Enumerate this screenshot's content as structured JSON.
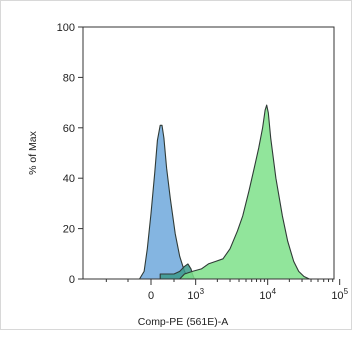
{
  "chart_data": {
    "type": "area",
    "xlabel": "Comp-PE (561E)-A",
    "ylabel": "% of Max",
    "xscale": "biexponential",
    "ylim": [
      0,
      100
    ],
    "y_ticks": [
      "0",
      "20",
      "40",
      "60",
      "80",
      "100"
    ],
    "x_ticks": [
      {
        "label": "0",
        "base": "0",
        "exp": ""
      },
      {
        "label": "10^3",
        "base": "10",
        "exp": "3"
      },
      {
        "label": "10^4",
        "base": "10",
        "exp": "4"
      },
      {
        "label": "10^5",
        "base": "10",
        "exp": "5"
      }
    ],
    "x_minor_ticks": [
      -1000,
      -500,
      500,
      2000,
      3000,
      4000,
      5000,
      6000,
      7000,
      8000,
      9000,
      20000,
      30000,
      40000,
      50000,
      60000,
      70000,
      80000,
      90000
    ],
    "series": [
      {
        "color": "#6fa8dc",
        "points": [
          [
            -250,
            0
          ],
          [
            -150,
            3
          ],
          [
            -80,
            12
          ],
          [
            0,
            26
          ],
          [
            80,
            42
          ],
          [
            140,
            55
          ],
          [
            200,
            61
          ],
          [
            240,
            61
          ],
          [
            280,
            56
          ],
          [
            340,
            44
          ],
          [
            420,
            32
          ],
          [
            520,
            18
          ],
          [
            600,
            9
          ],
          [
            700,
            3
          ],
          [
            820,
            0
          ]
        ]
      },
      {
        "color": "#3c9a8c",
        "points": [
          [
            0,
            0
          ],
          [
            200,
            0
          ],
          [
            200,
            2
          ],
          [
            500,
            2
          ],
          [
            600,
            3
          ],
          [
            700,
            5
          ],
          [
            780,
            6
          ],
          [
            860,
            4
          ],
          [
            900,
            2
          ],
          [
            960,
            0
          ]
        ]
      },
      {
        "color": "#7ee08a",
        "points": [
          [
            600,
            0
          ],
          [
            700,
            2
          ],
          [
            900,
            3
          ],
          [
            1200,
            4
          ],
          [
            1500,
            6
          ],
          [
            1900,
            7
          ],
          [
            2400,
            8
          ],
          [
            3000,
            12
          ],
          [
            3800,
            19
          ],
          [
            4500,
            25
          ],
          [
            5500,
            35
          ],
          [
            6500,
            44
          ],
          [
            7500,
            52
          ],
          [
            8500,
            60
          ],
          [
            9200,
            67
          ],
          [
            9700,
            69
          ],
          [
            10200,
            66
          ],
          [
            11000,
            56
          ],
          [
            13000,
            40
          ],
          [
            16000,
            25
          ],
          [
            19000,
            15
          ],
          [
            23000,
            7
          ],
          [
            27000,
            3
          ],
          [
            32000,
            1
          ],
          [
            38000,
            0
          ]
        ]
      }
    ]
  }
}
